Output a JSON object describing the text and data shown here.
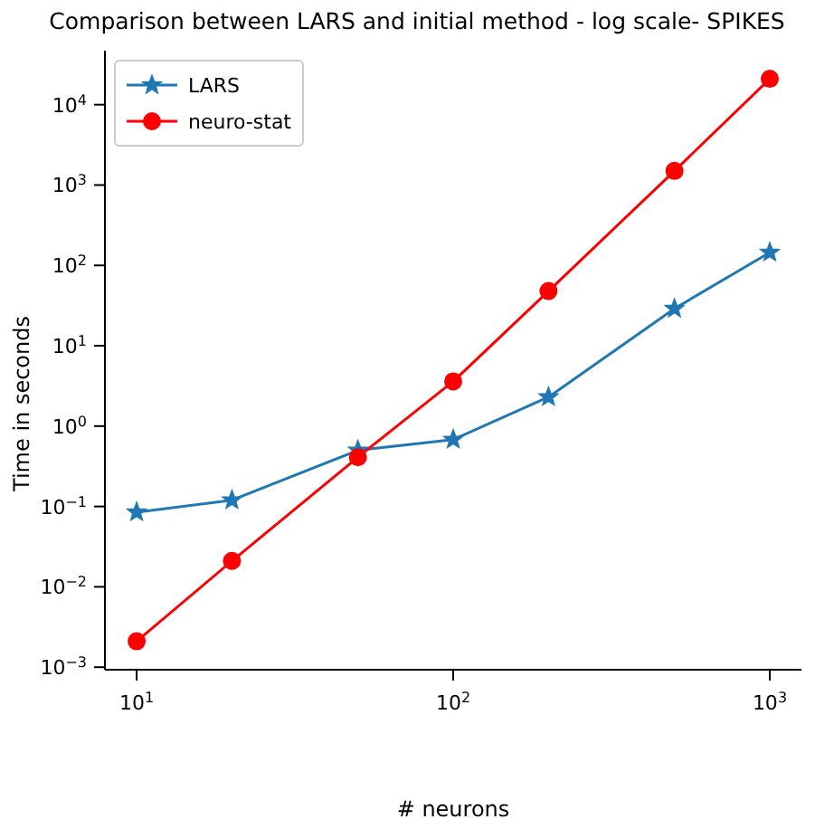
{
  "chart_data": {
    "type": "line",
    "title": "Comparison between LARS and initial method - log scale- SPIKES",
    "xlabel": "# neurons",
    "ylabel": "Time in seconds",
    "x": [
      10,
      20,
      50,
      100,
      200,
      500,
      1000
    ],
    "series": [
      {
        "name": "LARS",
        "color": "#1f77b4",
        "marker": "star",
        "values": [
          0.085,
          0.12,
          0.5,
          0.68,
          2.3,
          29,
          145
        ]
      },
      {
        "name": "neuro-stat",
        "color": "#ff0000",
        "marker": "circle",
        "values": [
          0.0021,
          0.021,
          0.41,
          3.6,
          48,
          1500,
          21000
        ]
      }
    ],
    "log": "xy",
    "grid": false,
    "legend": "top left",
    "line_style": "solid",
    "xlim": [
      7.94,
      1259
    ],
    "ylim": [
      0.00093,
      47000
    ],
    "xticks": [
      {
        "value": 10,
        "label": "10$^{1}$"
      },
      {
        "value": 100,
        "label": "10$^{2}$"
      },
      {
        "value": 1000,
        "label": "10$^{3}$"
      }
    ],
    "yticks": [
      {
        "value": 0.001,
        "label": "10$^{−3}$"
      },
      {
        "value": 0.01,
        "label": "10$^{−2}$"
      },
      {
        "value": 0.1,
        "label": "10$^{−1}$"
      },
      {
        "value": 1,
        "label": "10$^{0}$"
      },
      {
        "value": 10,
        "label": "10$^{1}$"
      },
      {
        "value": 100,
        "label": "10$^{2}$"
      },
      {
        "value": 1000,
        "label": "10$^{3}$"
      },
      {
        "value": 10000,
        "label": "10$^{4}$"
      }
    ]
  }
}
